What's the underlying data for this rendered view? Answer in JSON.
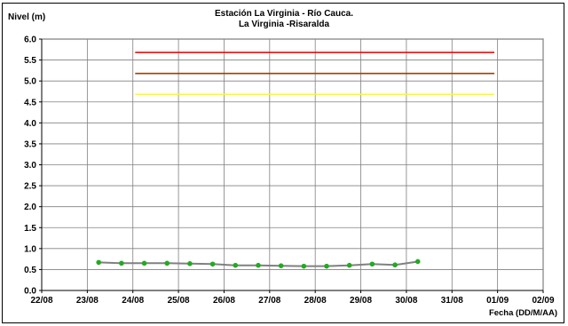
{
  "chart_data": {
    "type": "line",
    "title": "Estación La Virginia  - Río Cauca.",
    "subtitle": "La Virginia -Risaralda",
    "ylabel": "Nivel (m)",
    "xlabel": "Fecha (DD/M/AA)",
    "ylim": [
      0.0,
      6.0
    ],
    "yticks": [
      "0.0",
      "0.5",
      "1.0",
      "1.5",
      "2.0",
      "2.5",
      "3.0",
      "3.5",
      "4.0",
      "4.5",
      "5.0",
      "5.5",
      "6.0"
    ],
    "xticks": [
      "22/08",
      "23/08",
      "24/08",
      "25/08",
      "26/08",
      "27/08",
      "28/08",
      "29/08",
      "30/08",
      "31/08",
      "01/09",
      "02/09"
    ],
    "grid": true,
    "thresholds": [
      {
        "value": 5.68,
        "color": "#ff0000",
        "x_start": 2.05,
        "x_end": 9.93
      },
      {
        "value": 5.18,
        "color": "#8b4513",
        "x_start": 2.05,
        "x_end": 9.93
      },
      {
        "value": 4.68,
        "color": "#ffff00",
        "x_start": 2.05,
        "x_end": 9.93
      }
    ],
    "series": [
      {
        "line_color": "#808080",
        "marker_color": "#22aa22",
        "points": [
          {
            "x": 1.25,
            "y": 0.67
          },
          {
            "x": 1.75,
            "y": 0.65
          },
          {
            "x": 2.25,
            "y": 0.65
          },
          {
            "x": 2.75,
            "y": 0.65
          },
          {
            "x": 3.25,
            "y": 0.64
          },
          {
            "x": 3.75,
            "y": 0.63
          },
          {
            "x": 4.25,
            "y": 0.6
          },
          {
            "x": 4.75,
            "y": 0.6
          },
          {
            "x": 5.25,
            "y": 0.59
          },
          {
            "x": 5.75,
            "y": 0.58
          },
          {
            "x": 6.25,
            "y": 0.58
          },
          {
            "x": 6.75,
            "y": 0.6
          },
          {
            "x": 7.25,
            "y": 0.63
          },
          {
            "x": 7.75,
            "y": 0.61
          },
          {
            "x": 8.25,
            "y": 0.69
          }
        ]
      }
    ]
  }
}
